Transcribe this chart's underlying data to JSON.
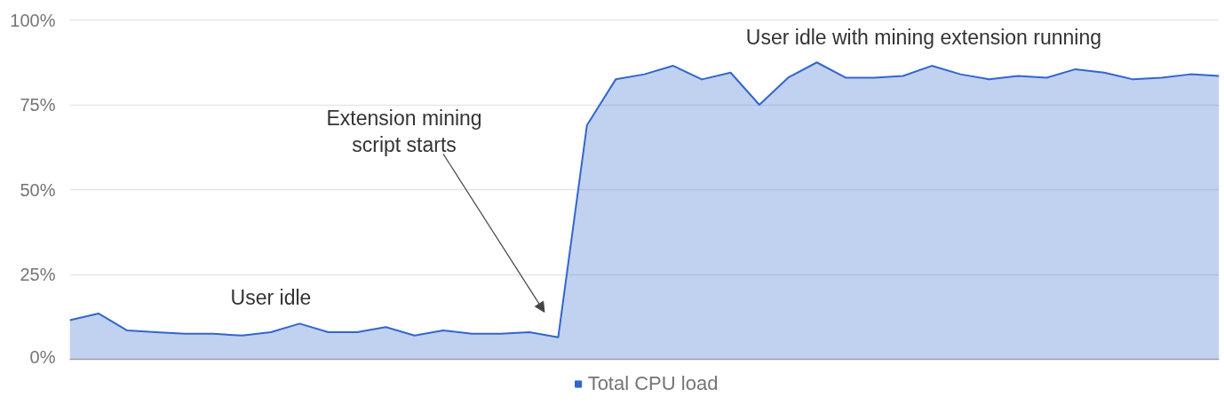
{
  "chart_data": {
    "type": "area",
    "categories": [
      null,
      null,
      null,
      null,
      null,
      null,
      null,
      null,
      null,
      null,
      null,
      null,
      null,
      null,
      null,
      null,
      null,
      null,
      null,
      null,
      null,
      null,
      null,
      null,
      null,
      null,
      null,
      null,
      null,
      null,
      null,
      null,
      null,
      null,
      null,
      null,
      null,
      null,
      null,
      null,
      null
    ],
    "series": [
      {
        "name": "Total CPU load",
        "color": "#3366cc",
        "values": [
          11.5,
          13.5,
          8.5,
          8,
          7.5,
          7.5,
          7,
          8,
          10.5,
          8,
          8,
          9.5,
          7,
          8.5,
          7.5,
          7.5,
          8,
          6.5,
          69,
          82.5,
          84,
          86.5,
          82.5,
          84.5,
          75,
          83,
          87.5,
          83,
          83,
          83.5,
          86.5,
          84,
          82.5,
          83.5,
          83,
          85.5,
          84.5,
          82.5,
          83,
          84,
          83.5
        ]
      }
    ],
    "ylim": [
      0,
      100
    ],
    "yticks": [
      {
        "value": 0,
        "label": "0%"
      },
      {
        "value": 25,
        "label": "25%"
      },
      {
        "value": 50,
        "label": "50%"
      },
      {
        "value": 75,
        "label": "75%"
      },
      {
        "value": 100,
        "label": "100%"
      }
    ],
    "grid": "y",
    "legend": "bottom",
    "tick_labels": "y",
    "annotations": [
      "User idle",
      "Extension mining\nscript starts",
      "User idle with mining extension running"
    ]
  }
}
